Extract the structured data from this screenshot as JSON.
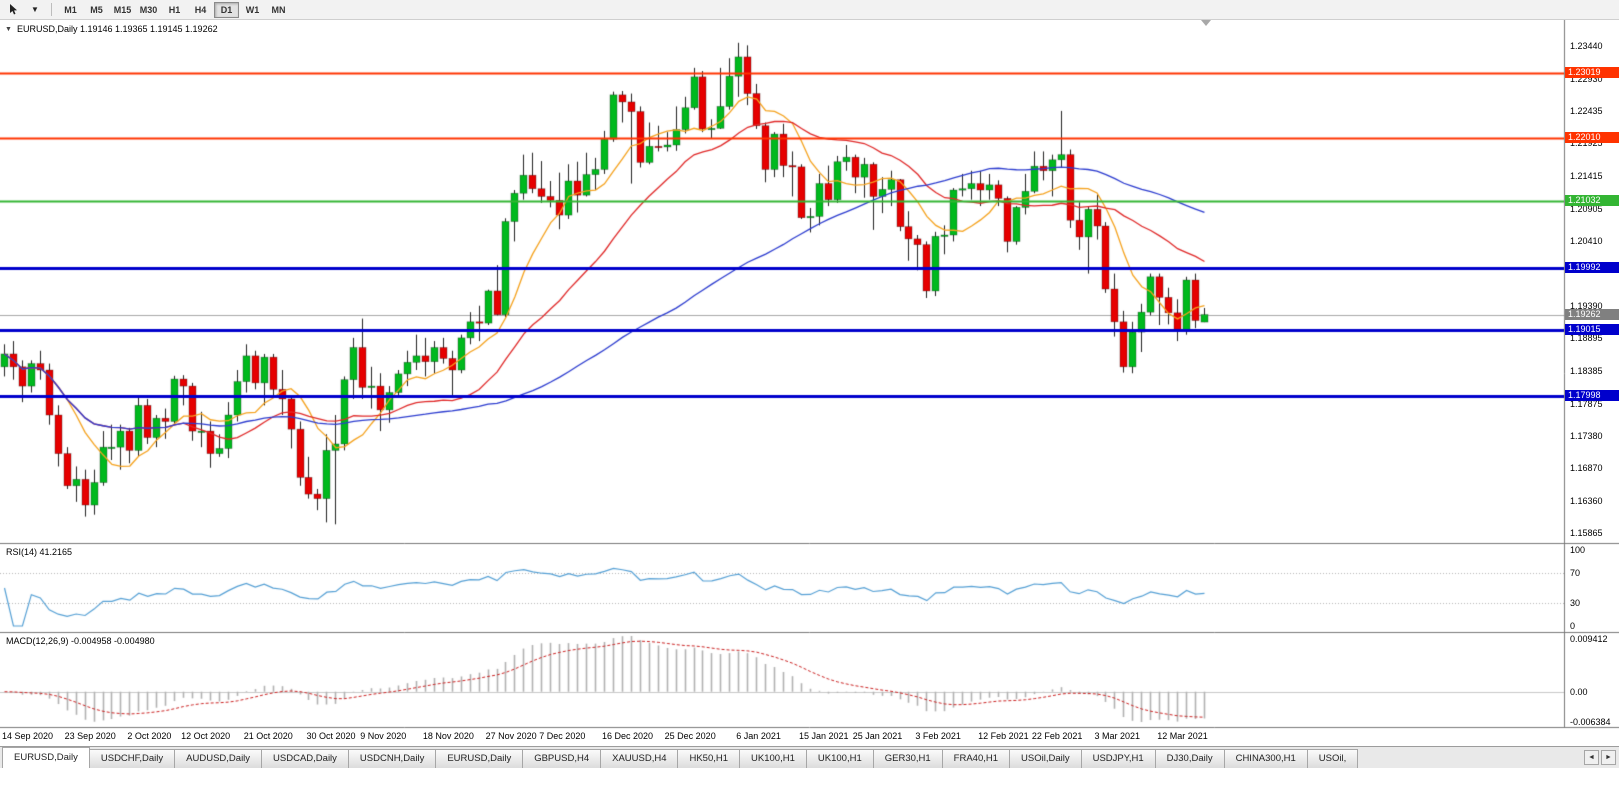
{
  "toolbar": {
    "timeframes": [
      "M1",
      "M5",
      "M15",
      "M30",
      "H1",
      "H4",
      "D1",
      "W1",
      "MN"
    ],
    "active_timeframe": "D1"
  },
  "chart": {
    "title": "EURUSD,Daily 1.19146 1.19365 1.19145 1.19262",
    "symbol": "EURUSD,Daily",
    "open": "1.19146",
    "high": "1.19365",
    "low": "1.19145",
    "close": "1.19262",
    "current_price": {
      "value": "1.19262",
      "color": "#808080"
    },
    "y_axis_ticks": [
      "1.23440",
      "1.22930",
      "1.22435",
      "1.21925",
      "1.21415",
      "1.20905",
      "1.20410",
      "1.19390",
      "1.18895",
      "1.18385",
      "1.17875",
      "1.17380",
      "1.16870",
      "1.16360",
      "1.15865"
    ],
    "x_axis_labels": [
      {
        "t": "14 Sep 2020",
        "i": 0
      },
      {
        "t": "23 Sep 2020",
        "i": 7
      },
      {
        "t": "2 Oct 2020",
        "i": 14
      },
      {
        "t": "12 Oct 2020",
        "i": 20
      },
      {
        "t": "21 Oct 2020",
        "i": 27
      },
      {
        "t": "30 Oct 2020",
        "i": 34
      },
      {
        "t": "9 Nov 2020",
        "i": 40
      },
      {
        "t": "18 Nov 2020",
        "i": 47
      },
      {
        "t": "27 Nov 2020",
        "i": 54
      },
      {
        "t": "7 Dec 2020",
        "i": 60
      },
      {
        "t": "16 Dec 2020",
        "i": 67
      },
      {
        "t": "25 Dec 2020",
        "i": 74
      },
      {
        "t": "6 Jan 2021",
        "i": 82
      },
      {
        "t": "15 Jan 2021",
        "i": 89
      },
      {
        "t": "25 Jan 2021",
        "i": 95
      },
      {
        "t": "3 Feb 2021",
        "i": 102
      },
      {
        "t": "12 Feb 2021",
        "i": 109
      },
      {
        "t": "22 Feb 2021",
        "i": 115
      },
      {
        "t": "3 Mar 2021",
        "i": 122
      },
      {
        "t": "12 Mar 2021",
        "i": 129
      }
    ],
    "horizontal_levels": [
      {
        "value": "1.23019",
        "price": 1.23019,
        "color": "#ff3300",
        "width": 2
      },
      {
        "value": "1.22010",
        "price": 1.2201,
        "color": "#ff3300",
        "width": 2
      },
      {
        "value": "1.21032",
        "price": 1.21032,
        "color": "#33b533",
        "width": 2
      },
      {
        "value": "1.19992",
        "price": 1.19992,
        "color": "#0000cc",
        "width": 3
      },
      {
        "value": "1.19015",
        "price": 1.19015,
        "color": "#0000cc",
        "width": 3
      },
      {
        "value": "1.17998",
        "price": 1.17998,
        "color": "#0000cc",
        "width": 3
      }
    ]
  },
  "indicators": {
    "rsi": {
      "label": "RSI(14) 41.2165",
      "period": 14,
      "value": "41.2165",
      "ticks": [
        "100",
        "70",
        "30",
        "0"
      ],
      "levels": [
        70,
        30
      ],
      "line_color": "#55a0d5"
    },
    "macd": {
      "label": "MACD(12,26,9) -0.004958 -0.004980",
      "fast": 12,
      "slow": 26,
      "signal": 9,
      "values": [
        "-0.004958",
        "-0.004980"
      ],
      "ticks": {
        "top": "0.009412",
        "zero": "0.00",
        "bottom": "-0.006384"
      },
      "hist_color": "#b2b2b2",
      "signal_color": "#cc2222"
    }
  },
  "chart_data": {
    "type": "candlestick",
    "title": "EURUSD, Daily",
    "timeframe": "D1",
    "up_color": "#00b91e",
    "down_color": "#e60000",
    "wick_color": "#222222",
    "moving_averages": [
      {
        "name": "ma-fast",
        "period": 8,
        "color": "#f5a21d"
      },
      {
        "name": "ma-mid",
        "period": 21,
        "color": "#e02828"
      },
      {
        "name": "ma-slow",
        "period": 55,
        "color": "#2b3bcf"
      }
    ],
    "candles": [
      [
        1.1845,
        1.188,
        1.183,
        1.1865
      ],
      [
        1.1865,
        1.1885,
        1.1825,
        1.1845
      ],
      [
        1.1845,
        1.1855,
        1.179,
        1.1815
      ],
      [
        1.1815,
        1.1855,
        1.1805,
        1.185
      ],
      [
        1.185,
        1.187,
        1.1825,
        1.184
      ],
      [
        1.184,
        1.185,
        1.1755,
        1.177
      ],
      [
        1.177,
        1.1785,
        1.169,
        1.171
      ],
      [
        1.171,
        1.172,
        1.1655,
        1.166
      ],
      [
        1.166,
        1.169,
        1.1635,
        1.167
      ],
      [
        1.167,
        1.1685,
        1.1612,
        1.163
      ],
      [
        1.163,
        1.1685,
        1.1615,
        1.1665
      ],
      [
        1.1665,
        1.1745,
        1.166,
        1.172
      ],
      [
        1.172,
        1.1755,
        1.17,
        1.172
      ],
      [
        1.172,
        1.1755,
        1.1685,
        1.1745
      ],
      [
        1.1745,
        1.175,
        1.1695,
        1.1715
      ],
      [
        1.1715,
        1.1798,
        1.1705,
        1.1785
      ],
      [
        1.1785,
        1.1795,
        1.1725,
        1.1735
      ],
      [
        1.1735,
        1.177,
        1.172,
        1.1765
      ],
      [
        1.1765,
        1.178,
        1.1733,
        1.176
      ],
      [
        1.176,
        1.1831,
        1.1755,
        1.1826
      ],
      [
        1.1826,
        1.1832,
        1.1785,
        1.1815
      ],
      [
        1.1815,
        1.182,
        1.173,
        1.1745
      ],
      [
        1.1745,
        1.1775,
        1.172,
        1.1745
      ],
      [
        1.1745,
        1.176,
        1.1688,
        1.171
      ],
      [
        1.171,
        1.174,
        1.1705,
        1.1718
      ],
      [
        1.1718,
        1.179,
        1.1703,
        1.177
      ],
      [
        1.177,
        1.184,
        1.176,
        1.1822
      ],
      [
        1.1822,
        1.188,
        1.1805,
        1.1862
      ],
      [
        1.1862,
        1.187,
        1.181,
        1.182
      ],
      [
        1.182,
        1.1865,
        1.1785,
        1.186
      ],
      [
        1.186,
        1.1865,
        1.18,
        1.181
      ],
      [
        1.181,
        1.184,
        1.177,
        1.1795
      ],
      [
        1.1795,
        1.18,
        1.1718,
        1.1748
      ],
      [
        1.1748,
        1.176,
        1.166,
        1.1673
      ],
      [
        1.1673,
        1.1705,
        1.164,
        1.1647
      ],
      [
        1.1647,
        1.1655,
        1.1622,
        1.164
      ],
      [
        1.164,
        1.174,
        1.1603,
        1.1715
      ],
      [
        1.1715,
        1.177,
        1.16,
        1.1725
      ],
      [
        1.1725,
        1.183,
        1.1715,
        1.1825
      ],
      [
        1.1825,
        1.189,
        1.1795,
        1.1875
      ],
      [
        1.1875,
        1.192,
        1.1795,
        1.1813
      ],
      [
        1.1813,
        1.1845,
        1.178,
        1.1815
      ],
      [
        1.1815,
        1.1835,
        1.1745,
        1.1778
      ],
      [
        1.1778,
        1.1815,
        1.1758,
        1.1805
      ],
      [
        1.1805,
        1.184,
        1.1798,
        1.1834
      ],
      [
        1.1834,
        1.187,
        1.1815,
        1.1852
      ],
      [
        1.1852,
        1.1895,
        1.184,
        1.1862
      ],
      [
        1.1862,
        1.189,
        1.183,
        1.1853
      ],
      [
        1.1853,
        1.1885,
        1.1835,
        1.1875
      ],
      [
        1.1875,
        1.189,
        1.185,
        1.1858
      ],
      [
        1.1858,
        1.187,
        1.18,
        1.184
      ],
      [
        1.184,
        1.1895,
        1.1835,
        1.189
      ],
      [
        1.189,
        1.193,
        1.188,
        1.1915
      ],
      [
        1.1915,
        1.194,
        1.1885,
        1.1913
      ],
      [
        1.1913,
        1.1965,
        1.191,
        1.1963
      ],
      [
        1.1963,
        1.2003,
        1.1925,
        1.1926
      ],
      [
        1.1926,
        1.2076,
        1.1922,
        1.2071
      ],
      [
        1.2071,
        1.212,
        1.204,
        1.2115
      ],
      [
        1.2115,
        1.2175,
        1.2105,
        1.2143
      ],
      [
        1.2143,
        1.2178,
        1.2115,
        1.2122
      ],
      [
        1.2122,
        1.2165,
        1.21,
        1.211
      ],
      [
        1.211,
        1.2134,
        1.2093,
        1.2104
      ],
      [
        1.2104,
        1.2147,
        1.2059,
        1.2081
      ],
      [
        1.2081,
        1.216,
        1.2075,
        1.2134
      ],
      [
        1.2134,
        1.2164,
        1.2085,
        1.2112
      ],
      [
        1.2112,
        1.2178,
        1.211,
        1.2144
      ],
      [
        1.2144,
        1.217,
        1.212,
        1.2152
      ],
      [
        1.2152,
        1.2212,
        1.2145,
        1.2199
      ],
      [
        1.2199,
        1.2273,
        1.2195,
        1.2268
      ],
      [
        1.2268,
        1.2274,
        1.2225,
        1.2257
      ],
      [
        1.2257,
        1.227,
        1.213,
        1.2242
      ],
      [
        1.2242,
        1.225,
        1.2155,
        1.2163
      ],
      [
        1.2163,
        1.2225,
        1.216,
        1.2188
      ],
      [
        1.2188,
        1.222,
        1.218,
        1.2187
      ],
      [
        1.2187,
        1.221,
        1.218,
        1.219
      ],
      [
        1.219,
        1.225,
        1.2181,
        1.2214
      ],
      [
        1.2214,
        1.2265,
        1.2208,
        1.2248
      ],
      [
        1.2248,
        1.231,
        1.2245,
        1.2296
      ],
      [
        1.2296,
        1.2305,
        1.221,
        1.2215
      ],
      [
        1.2215,
        1.223,
        1.22,
        1.2216
      ],
      [
        1.2216,
        1.231,
        1.2215,
        1.225
      ],
      [
        1.225,
        1.2325,
        1.2245,
        1.2297
      ],
      [
        1.2297,
        1.2349,
        1.2265,
        1.2327
      ],
      [
        1.2327,
        1.2345,
        1.2252,
        1.227
      ],
      [
        1.227,
        1.2285,
        1.2215,
        1.222
      ],
      [
        1.222,
        1.2225,
        1.2132,
        1.2152
      ],
      [
        1.2152,
        1.221,
        1.214,
        1.2207
      ],
      [
        1.2207,
        1.2223,
        1.214,
        1.2158
      ],
      [
        1.2158,
        1.218,
        1.211,
        1.2156
      ],
      [
        1.2156,
        1.216,
        1.2075,
        1.2077
      ],
      [
        1.2077,
        1.2092,
        1.2054,
        1.2079
      ],
      [
        1.2079,
        1.2145,
        1.2065,
        1.213
      ],
      [
        1.213,
        1.2158,
        1.2095,
        1.2105
      ],
      [
        1.2105,
        1.2173,
        1.21,
        1.2164
      ],
      [
        1.2164,
        1.219,
        1.215,
        1.2171
      ],
      [
        1.2171,
        1.2175,
        1.2115,
        1.214
      ],
      [
        1.214,
        1.217,
        1.2108,
        1.216
      ],
      [
        1.216,
        1.2163,
        1.2058,
        1.211
      ],
      [
        1.211,
        1.214,
        1.2084,
        1.2121
      ],
      [
        1.2121,
        1.215,
        1.2095,
        1.2136
      ],
      [
        1.2136,
        1.2137,
        1.2056,
        1.2063
      ],
      [
        1.2063,
        1.2087,
        1.201,
        1.2044
      ],
      [
        1.2044,
        1.205,
        1.1995,
        1.2035
      ],
      [
        1.2035,
        1.204,
        1.1952,
        1.1963
      ],
      [
        1.1963,
        1.2055,
        1.1955,
        1.2048
      ],
      [
        1.2048,
        1.2065,
        1.202,
        1.205
      ],
      [
        1.205,
        1.2123,
        1.204,
        1.212
      ],
      [
        1.212,
        1.2145,
        1.211,
        1.2122
      ],
      [
        1.2122,
        1.215,
        1.2105,
        1.213
      ],
      [
        1.213,
        1.215,
        1.2095,
        1.212
      ],
      [
        1.212,
        1.2145,
        1.2105,
        1.2128
      ],
      [
        1.2128,
        1.2135,
        1.2095,
        1.2107
      ],
      [
        1.2107,
        1.211,
        1.2023,
        1.204
      ],
      [
        1.204,
        1.2095,
        1.2035,
        1.2093
      ],
      [
        1.2093,
        1.2145,
        1.2082,
        1.2118
      ],
      [
        1.2118,
        1.218,
        1.2115,
        1.2157
      ],
      [
        1.2157,
        1.218,
        1.2135,
        1.215
      ],
      [
        1.215,
        1.2175,
        1.211,
        1.2167
      ],
      [
        1.2167,
        1.2243,
        1.2155,
        1.2175
      ],
      [
        1.2175,
        1.2183,
        1.2061,
        1.2073
      ],
      [
        1.2073,
        1.2101,
        1.2027,
        1.2047
      ],
      [
        1.2047,
        1.2094,
        1.199,
        1.209
      ],
      [
        1.209,
        1.2113,
        1.2043,
        1.2064
      ],
      [
        1.2064,
        1.207,
        1.196,
        1.1966
      ],
      [
        1.1966,
        1.199,
        1.1892,
        1.1915
      ],
      [
        1.1915,
        1.1932,
        1.1836,
        1.1845
      ],
      [
        1.1845,
        1.1915,
        1.1835,
        1.1899
      ],
      [
        1.1899,
        1.1943,
        1.1868,
        1.193
      ],
      [
        1.193,
        1.199,
        1.1925,
        1.1985
      ],
      [
        1.1985,
        1.199,
        1.191,
        1.1953
      ],
      [
        1.1953,
        1.1968,
        1.1911,
        1.1929
      ],
      [
        1.1929,
        1.195,
        1.1885,
        1.19
      ],
      [
        1.19,
        1.1985,
        1.1895,
        1.198
      ],
      [
        1.198,
        1.199,
        1.1905,
        1.1917
      ],
      [
        1.19146,
        1.19365,
        1.19145,
        1.19262
      ]
    ]
  },
  "tabs": {
    "items": [
      "EURUSD,Daily",
      "USDCHF,Daily",
      "AUDUSD,Daily",
      "USDCAD,Daily",
      "USDCNH,Daily",
      "EURUSD,Daily",
      "GBPUSD,H4",
      "XAUUSD,H4",
      "HK50,H1",
      "UK100,H1",
      "UK100,H1",
      "GER30,H1",
      "FRA40,H1",
      "USOil,Daily",
      "USDJPY,H1",
      "DJ30,Daily",
      "CHINA300,H1",
      "USOil,"
    ],
    "active_index": 0,
    "scroll_left": "◄",
    "scroll_right": "►"
  }
}
